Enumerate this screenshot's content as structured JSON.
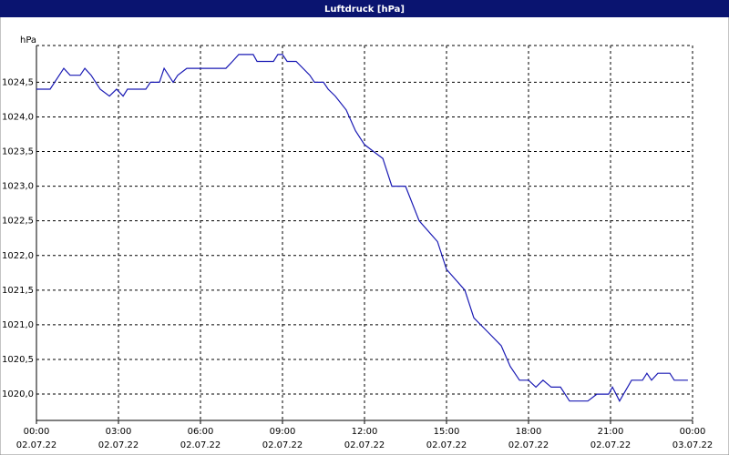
{
  "chart_data": {
    "type": "line",
    "title": "Luftdruck [hPa]",
    "ylabel": "hPa",
    "color": "#1a1ab4",
    "grid": true,
    "x": [
      0,
      0.5,
      1,
      1.23,
      1.6,
      1.77,
      2,
      2.33,
      2.67,
      2.93,
      3.17,
      3.33,
      4,
      4.17,
      4.5,
      4.67,
      5,
      5.17,
      5.5,
      6.93,
      7.17,
      7.4,
      7.93,
      8.07,
      8.67,
      8.83,
      9,
      9.17,
      9.5,
      10,
      10.17,
      10.5,
      10.67,
      10.93,
      11.33,
      11.67,
      12,
      12.33,
      12.67,
      13,
      13.5,
      14,
      14.67,
      15,
      15.67,
      16,
      16.5,
      17,
      17.33,
      17.67,
      18,
      18.27,
      18.53,
      18.83,
      19.17,
      19.5,
      20.17,
      20.5,
      20.93,
      21.07,
      21.33,
      21.77,
      22.17,
      22.33,
      22.5,
      22.73,
      23.17,
      23.33,
      23.83
    ],
    "values": [
      1024.4,
      1024.4,
      1024.7,
      1024.6,
      1024.6,
      1024.7,
      1024.6,
      1024.4,
      1024.3,
      1024.4,
      1024.3,
      1024.4,
      1024.4,
      1024.5,
      1024.5,
      1024.7,
      1024.5,
      1024.6,
      1024.7,
      1024.7,
      1024.8,
      1024.9,
      1024.9,
      1024.8,
      1024.8,
      1024.9,
      1024.9,
      1024.8,
      1024.8,
      1024.6,
      1024.5,
      1024.5,
      1024.4,
      1024.3,
      1024.1,
      1023.8,
      1023.6,
      1023.5,
      1023.4,
      1023.0,
      1023.0,
      1022.5,
      1022.2,
      1021.8,
      1021.5,
      1021.1,
      1020.9,
      1020.7,
      1020.4,
      1020.2,
      1020.2,
      1020.1,
      1020.2,
      1020.1,
      1020.1,
      1019.9,
      1019.9,
      1020.0,
      1020.0,
      1020.1,
      1019.9,
      1020.2,
      1020.2,
      1020.3,
      1020.2,
      1020.3,
      1020.3,
      1020.2,
      1020.2
    ],
    "xlim": [
      0,
      24
    ],
    "xticks": [
      {
        "value": 0,
        "label": "00:00"
      },
      {
        "value": 3,
        "label": "03:00"
      },
      {
        "value": 6,
        "label": "06:00"
      },
      {
        "value": 9,
        "label": "09:00"
      },
      {
        "value": 12,
        "label": "12:00"
      },
      {
        "value": 15,
        "label": "15:00"
      },
      {
        "value": 18,
        "label": "18:00"
      },
      {
        "value": 21,
        "label": "21:00"
      },
      {
        "value": 24,
        "label": "00:00"
      }
    ],
    "xtick_dates": [
      "02.07.22",
      "02.07.22",
      "02.07.22",
      "02.07.22",
      "02.07.22",
      "02.07.22",
      "02.07.22",
      "02.07.22",
      "03.07.22"
    ],
    "ylim": [
      1019.62,
      1025.03
    ],
    "yticks": [
      {
        "value": 1020,
        "label": "1020,0"
      },
      {
        "value": 1020.5,
        "label": "1020,5"
      },
      {
        "value": 1021,
        "label": "1021,0"
      },
      {
        "value": 1021.5,
        "label": "1021,5"
      },
      {
        "value": 1022,
        "label": "1022,0"
      },
      {
        "value": 1022.5,
        "label": "1022,5"
      },
      {
        "value": 1023,
        "label": "1023,0"
      },
      {
        "value": 1023.5,
        "label": "1023,5"
      },
      {
        "value": 1024,
        "label": "1024,0"
      },
      {
        "value": 1024.5,
        "label": "1024,5"
      }
    ]
  }
}
